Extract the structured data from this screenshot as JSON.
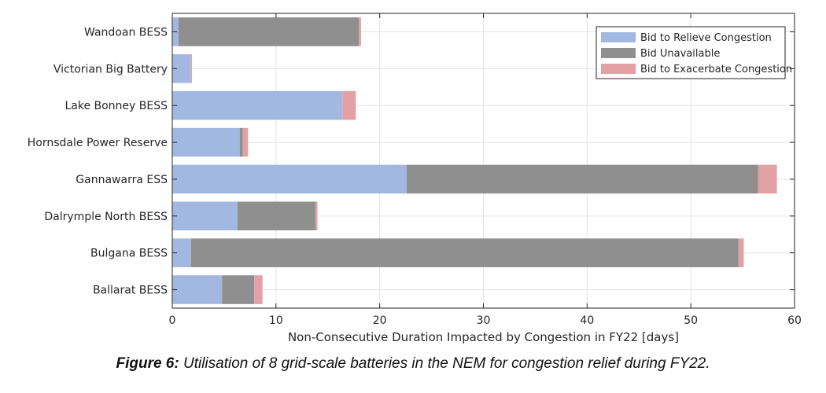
{
  "chart_data": {
    "type": "bar",
    "orientation": "horizontal",
    "stacked": true,
    "categories": [
      "Wandoan BESS",
      "Victorian Big Battery",
      "Lake Bonney BESS",
      "Hornsdale Power Reserve",
      "Gannawarra ESS",
      "Dalrymple North BESS",
      "Bulgana BESS",
      "Ballarat BESS"
    ],
    "series": [
      {
        "name": "Bid to Relieve Congestion",
        "color": "#a3b8e0",
        "values": [
          0.6,
          1.8,
          16.4,
          6.5,
          22.6,
          6.3,
          1.8,
          4.8
        ]
      },
      {
        "name": "Bid Unavailable",
        "color": "#8f8f8f",
        "values": [
          17.4,
          0.0,
          0.0,
          0.3,
          33.9,
          7.5,
          52.8,
          3.1
        ]
      },
      {
        "name": "Bid to Exacerbate Congestion",
        "color": "#e2a1a4",
        "values": [
          0.2,
          0.1,
          1.3,
          0.5,
          1.8,
          0.2,
          0.5,
          0.8
        ]
      }
    ],
    "xlabel": "Non-Consecutive Duration Impacted by Congestion in FY22 [days]",
    "xlim": [
      0,
      60
    ],
    "xticks": [
      "0",
      "10",
      "20",
      "30",
      "40",
      "50",
      "60"
    ],
    "grid": true,
    "legend_position": "top-right"
  },
  "caption": {
    "figure_label": "Figure 6:",
    "text": "Utilisation of 8 grid-scale batteries in the NEM for congestion relief during FY22."
  }
}
